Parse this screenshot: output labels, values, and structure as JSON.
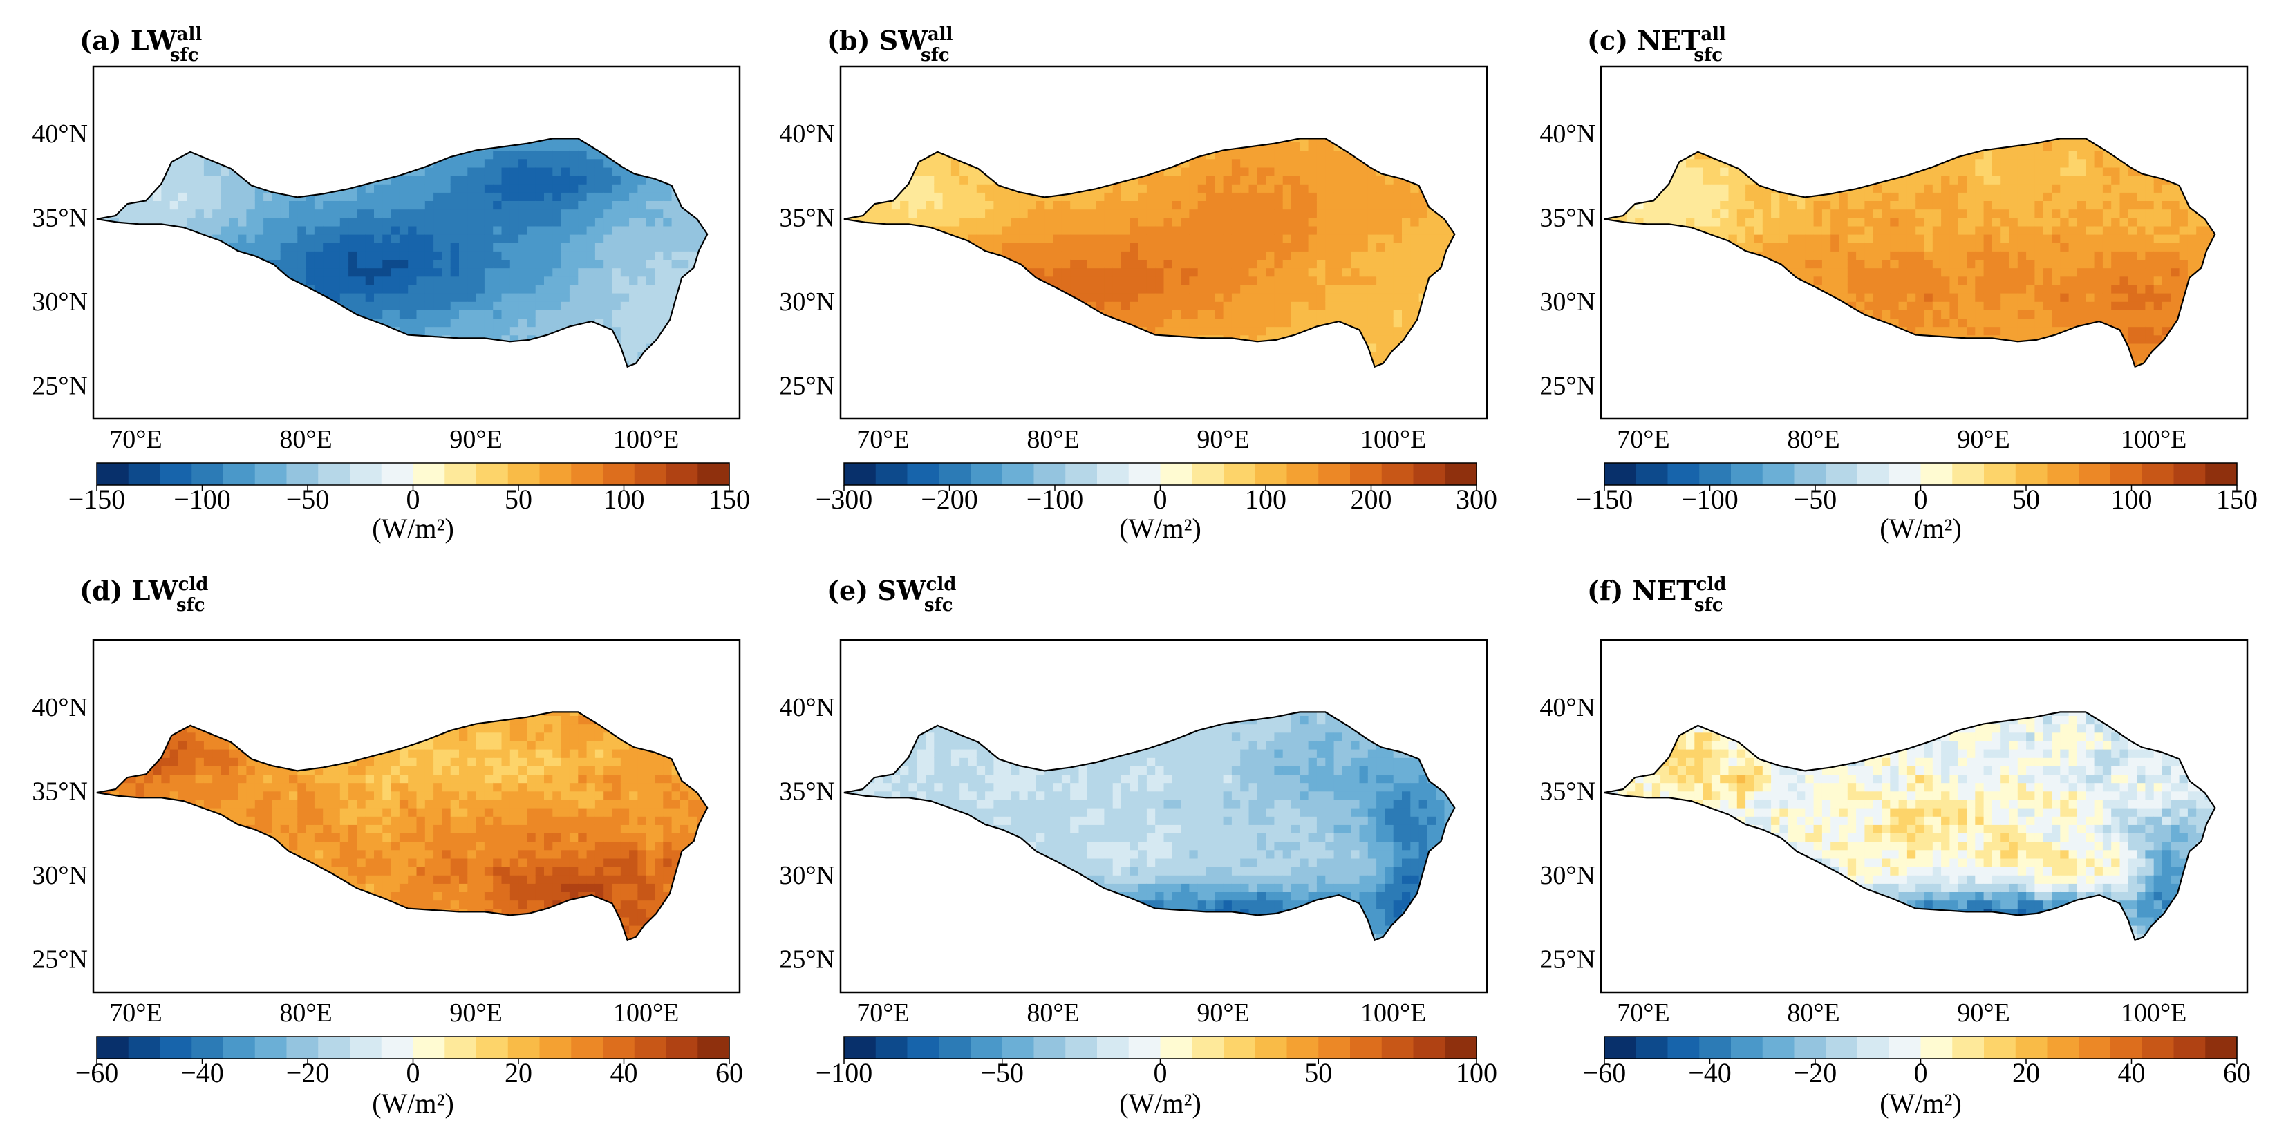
{
  "figure": {
    "colorbar_unit": "(W/m²)",
    "lat_ticks": [
      "40°N",
      "35°N",
      "30°N",
      "25°N"
    ],
    "lon_ticks": [
      "70°E",
      "80°E",
      "90°E",
      "100°E"
    ],
    "colormap": [
      "#08306b",
      "#0d4a8c",
      "#1764ab",
      "#2c7bb6",
      "#4a98c9",
      "#6bafd6",
      "#94c4df",
      "#b6d7e8",
      "#d6e9f2",
      "#eef5f8",
      "#fffbd2",
      "#fee99a",
      "#fdd46a",
      "#f9bb47",
      "#f4a132",
      "#ec8826",
      "#dd6e1d",
      "#c85717",
      "#b04213",
      "#8f300d"
    ],
    "region": "Tibetan Plateau (land mask)",
    "colors": {
      "frame": "#000000",
      "boundary": "#000000",
      "background": "#ffffff"
    }
  },
  "chart_data": [
    {
      "type": "heatmap",
      "panel": "(a)",
      "quantity": "LW",
      "subscript": "sfc",
      "superscript": "all",
      "xlim": [
        67.5,
        105.5
      ],
      "ylim": [
        23,
        44
      ],
      "xticks": [
        70,
        80,
        90,
        100
      ],
      "yticks": [
        25,
        30,
        35,
        40
      ],
      "clim": [
        -150,
        150
      ],
      "cbar_ticks": [
        "−150",
        "−100",
        "−50",
        "0",
        "50",
        "100",
        "150"
      ],
      "typical_range": [
        -110,
        -45
      ],
      "pattern": "strong negative over central plateau, weakest on western and eastern edges"
    },
    {
      "type": "heatmap",
      "panel": "(b)",
      "quantity": "SW",
      "subscript": "sfc",
      "superscript": "all",
      "xlim": [
        67.5,
        105.5
      ],
      "ylim": [
        23,
        44
      ],
      "xticks": [
        70,
        80,
        90,
        100
      ],
      "yticks": [
        25,
        30,
        35,
        40
      ],
      "clim": [
        -300,
        300
      ],
      "cbar_ticks": [
        "−300",
        "−200",
        "−100",
        "0",
        "100",
        "200",
        "300"
      ],
      "typical_range": [
        60,
        230
      ],
      "pattern": "positive everywhere, highest over southern central plateau"
    },
    {
      "type": "heatmap",
      "panel": "(c)",
      "quantity": "NET",
      "subscript": "sfc",
      "superscript": "all",
      "xlim": [
        67.5,
        105.5
      ],
      "ylim": [
        23,
        44
      ],
      "xticks": [
        70,
        80,
        90,
        100
      ],
      "yticks": [
        25,
        30,
        35,
        40
      ],
      "clim": [
        -150,
        150
      ],
      "cbar_ticks": [
        "−150",
        "−100",
        "−50",
        "0",
        "50",
        "100",
        "150"
      ],
      "typical_range": [
        15,
        120
      ],
      "pattern": "positive everywhere, highest in the south-east"
    },
    {
      "type": "heatmap",
      "panel": "(d)",
      "quantity": "LW",
      "subscript": "sfc",
      "superscript": "cld",
      "xlim": [
        67.5,
        105.5
      ],
      "ylim": [
        23,
        44
      ],
      "xticks": [
        70,
        80,
        90,
        100
      ],
      "yticks": [
        25,
        30,
        35,
        40
      ],
      "clim": [
        -60,
        60
      ],
      "cbar_ticks": [
        "−60",
        "−40",
        "−20",
        "0",
        "20",
        "40",
        "60"
      ],
      "typical_range": [
        15,
        50
      ],
      "pattern": "positive everywhere, strongest in the south-east"
    },
    {
      "type": "heatmap",
      "panel": "(e)",
      "quantity": "SW",
      "subscript": "sfc",
      "superscript": "cld",
      "xlim": [
        67.5,
        105.5
      ],
      "ylim": [
        23,
        44
      ],
      "xticks": [
        70,
        80,
        90,
        100
      ],
      "yticks": [
        25,
        30,
        35,
        40
      ],
      "clim": [
        -100,
        100
      ],
      "cbar_ticks": [
        "−100",
        "−50",
        "0",
        "50",
        "100"
      ],
      "typical_range": [
        -85,
        10
      ],
      "pattern": "negative, most negative along the southern and south-eastern margin"
    },
    {
      "type": "heatmap",
      "panel": "(f)",
      "quantity": "NET",
      "subscript": "sfc",
      "superscript": "cld",
      "xlim": [
        67.5,
        105.5
      ],
      "ylim": [
        23,
        44
      ],
      "xticks": [
        70,
        80,
        90,
        100
      ],
      "yticks": [
        25,
        30,
        35,
        40
      ],
      "clim": [
        -60,
        60
      ],
      "cbar_ticks": [
        "−60",
        "−40",
        "−20",
        "0",
        "20",
        "40",
        "60"
      ],
      "typical_range": [
        -50,
        25
      ],
      "pattern": "mixed: positive patches in west and centre, negative in south-east"
    }
  ]
}
